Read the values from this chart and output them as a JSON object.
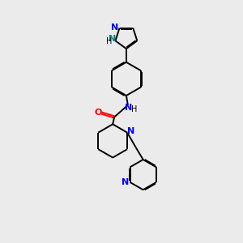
{
  "bg_color": "#ebebeb",
  "bond_color": "#000000",
  "N_color": "#0000ff",
  "O_color": "#ff0000",
  "teal_N_color": "#008080",
  "font_size": 8,
  "line_width": 1.4,
  "fig_size": [
    3.0,
    3.0
  ],
  "dpi": 100,
  "xlim": [
    0,
    10
  ],
  "ylim": [
    0,
    15
  ]
}
